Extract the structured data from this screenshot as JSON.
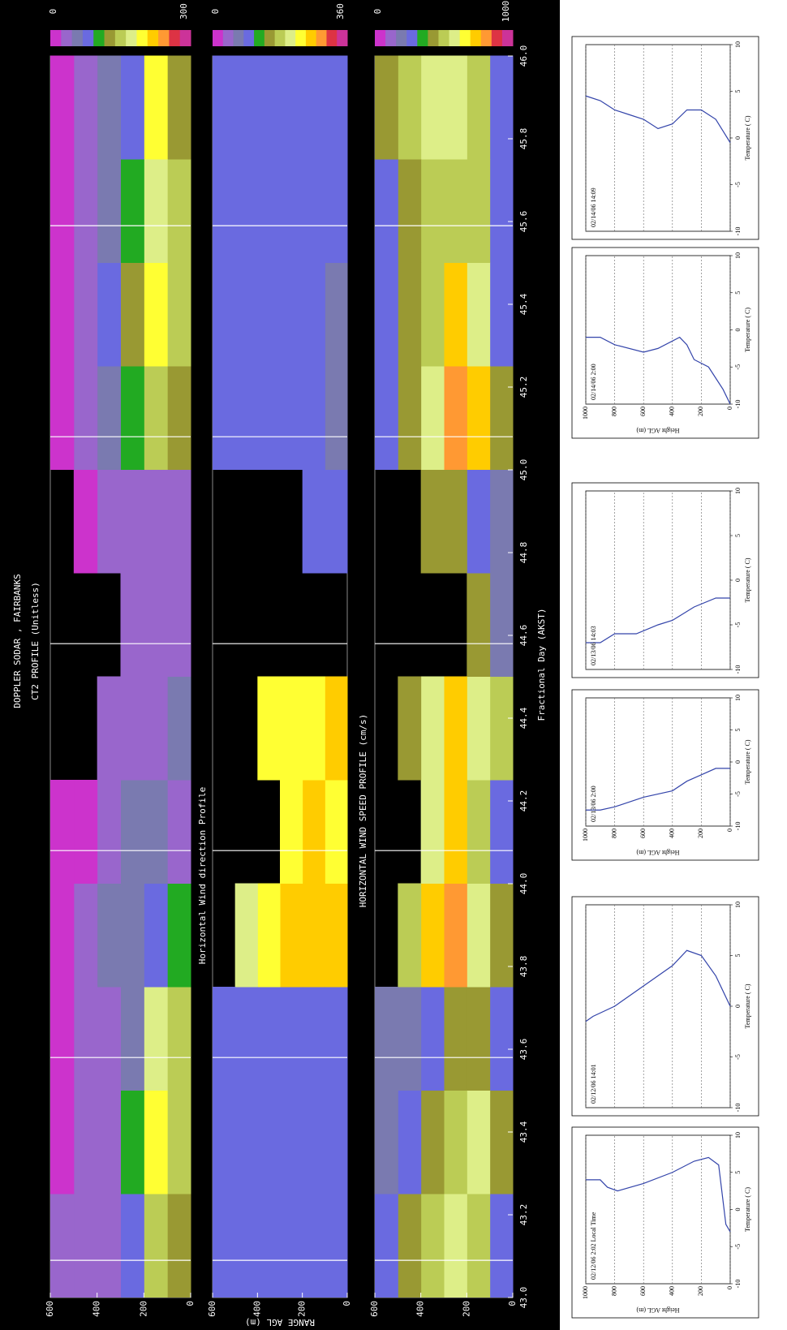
{
  "chart_data": [
    {
      "type": "heatmap",
      "title": "DOPPLER SODAR , FAIRBANKS",
      "subtitle": "CT2 PROFILE (Unitless)",
      "x_bins": [
        43,
        43.25,
        43.5,
        43.75,
        44,
        44.25,
        44.5,
        44.75,
        45,
        45.25,
        45.5,
        45.75,
        46
      ],
      "y_bins": [
        0,
        100,
        200,
        300,
        400,
        500,
        600
      ],
      "values": [
        [
          120,
          150,
          140,
          100,
          40,
          60,
          40,
          40,
          120,
          150,
          140,
          130
        ],
        [
          140,
          200,
          180,
          90,
          60,
          40,
          30,
          30,
          160,
          200,
          180,
          190
        ],
        [
          80,
          100,
          60,
          50,
          50,
          40,
          30,
          30,
          110,
          120,
          100,
          90
        ],
        [
          40,
          40,
          30,
          60,
          40,
          30,
          null,
          30,
          60,
          70,
          50,
          60
        ],
        [
          30,
          40,
          30,
          30,
          20,
          null,
          null,
          20,
          40,
          30,
          30,
          40
        ],
        [
          30,
          20,
          20,
          20,
          20,
          null,
          null,
          null,
          20,
          20,
          20,
          20
        ]
      ],
      "xlim": [
        43,
        46
      ],
      "ylim": [
        0,
        600
      ],
      "yticks": [
        0,
        200,
        400,
        600
      ],
      "vlim": [
        0,
        300
      ],
      "vlines": [
        43.09,
        43.58,
        44.08,
        44.58,
        45.08,
        45.59
      ],
      "colorscale": [
        "#cc33cc",
        "#9966cc",
        "#7a7ab0",
        "#6a6ae0",
        "#22aa22",
        "#999933",
        "#bbcc55",
        "#ddee88",
        "#ffff33",
        "#ffcc00",
        "#ff9933",
        "#dd3344",
        "#cc3399"
      ]
    },
    {
      "type": "heatmap",
      "title": "Horizontal Wind direction Profile",
      "ylabel": "RANGE AGL (m)",
      "x_bins": [
        43,
        43.25,
        43.5,
        43.75,
        44,
        44.25,
        44.5,
        44.75,
        45,
        45.25,
        45.5,
        45.75,
        46
      ],
      "y_bins": [
        0,
        100,
        200,
        300,
        400,
        500,
        600
      ],
      "values": [
        [
          90,
          90,
          90,
          250,
          240,
          250,
          null,
          90,
          80,
          80,
          90,
          90
        ],
        [
          90,
          90,
          90,
          260,
          250,
          240,
          null,
          100,
          90,
          90,
          90,
          90
        ],
        [
          90,
          90,
          90,
          250,
          240,
          230,
          null,
          null,
          90,
          90,
          90,
          90
        ],
        [
          90,
          90,
          90,
          240,
          null,
          240,
          null,
          null,
          100,
          90,
          90,
          90
        ],
        [
          90,
          90,
          90,
          220,
          null,
          null,
          null,
          null,
          100,
          100,
          90,
          90
        ],
        [
          100,
          90,
          90,
          null,
          null,
          null,
          null,
          null,
          100,
          90,
          100,
          90
        ]
      ],
      "xlim": [
        43,
        46
      ],
      "ylim": [
        0,
        600
      ],
      "yticks": [
        0,
        200,
        400,
        600
      ],
      "vlim": [
        0,
        360
      ],
      "vlines": [
        43.09,
        43.58,
        44.08,
        44.58,
        45.08,
        45.59
      ],
      "colorscale": [
        "#cc33cc",
        "#9966cc",
        "#7a7ab0",
        "#6a6ae0",
        "#22aa22",
        "#999933",
        "#bbcc55",
        "#ddee88",
        "#ffff33",
        "#ffcc00",
        "#ff9933",
        "#dd3344",
        "#cc3399"
      ]
    },
    {
      "type": "heatmap",
      "title": "HORIZONTAL WIND SPEED PROFILE (cm/s)",
      "xlabel": "Fractional Day (AKST)",
      "x_bins": [
        43,
        43.25,
        43.5,
        43.75,
        44,
        44.25,
        44.5,
        44.75,
        45,
        45.25,
        45.5,
        45.75,
        46
      ],
      "y_bins": [
        0,
        100,
        200,
        300,
        400,
        500,
        600
      ],
      "values": [
        [
          300,
          400,
          300,
          400,
          300,
          500,
          200,
          200,
          400,
          300,
          300,
          300
        ],
        [
          500,
          600,
          400,
          600,
          500,
          600,
          400,
          300,
          700,
          600,
          500,
          500
        ],
        [
          600,
          500,
          400,
          800,
          700,
          700,
          null,
          400,
          800,
          700,
          500,
          600
        ],
        [
          500,
          400,
          300,
          700,
          600,
          600,
          null,
          400,
          600,
          500,
          500,
          600
        ],
        [
          400,
          300,
          200,
          500,
          null,
          400,
          null,
          null,
          400,
          400,
          400,
          500
        ],
        [
          300,
          200,
          200,
          null,
          null,
          null,
          null,
          null,
          300,
          300,
          300,
          400
        ]
      ],
      "xlim": [
        43,
        46
      ],
      "ylim": [
        0,
        600
      ],
      "yticks": [
        0,
        200,
        400,
        600
      ],
      "vlim": [
        0,
        1000
      ],
      "xticks": [
        {
          "value": 43,
          "label": "43.0"
        },
        43.2,
        43.4,
        43.6,
        43.8,
        {
          "value": 44,
          "label": "44.0"
        },
        44.2,
        44.4,
        44.6,
        44.8,
        {
          "value": 45,
          "label": "45.0"
        },
        45.2,
        45.4,
        45.6,
        45.8,
        {
          "value": 46,
          "label": "46.0"
        }
      ],
      "vlines": [
        43.09,
        43.58,
        44.08,
        44.58,
        45.08,
        45.59
      ],
      "colorscale": [
        "#cc33cc",
        "#9966cc",
        "#7a7ab0",
        "#6a6ae0",
        "#22aa22",
        "#999933",
        "#bbcc55",
        "#ddee88",
        "#ffff33",
        "#ffcc00",
        "#ff9933",
        "#dd3344",
        "#cc3399"
      ]
    },
    {
      "type": "line",
      "title": "02/12/06 2:02 Local Time",
      "xlabel": "Temperature ( C)",
      "ylabel": "Height AGL (m)",
      "ytick_labels": true,
      "color": "#3344aa",
      "x": [
        -3,
        -2,
        6,
        7,
        6.5,
        5,
        3.5,
        2.5,
        3,
        4,
        4
      ],
      "values": [
        0,
        30,
        80,
        150,
        250,
        400,
        600,
        780,
        850,
        900,
        1000
      ],
      "xlim": [
        -10,
        10
      ],
      "ylim": [
        0,
        1000
      ],
      "xticks": [
        -10,
        -5,
        0,
        5,
        10
      ],
      "yticks": [
        0,
        200,
        400,
        600,
        800,
        1000
      ]
    },
    {
      "type": "line",
      "title": "02/12/06 14:01",
      "xlabel": "Temperature ( C)",
      "ytick_labels": false,
      "color": "#3344aa",
      "x": [
        0,
        3,
        5,
        5.5,
        4,
        2,
        0,
        -1,
        -1.5
      ],
      "values": [
        0,
        100,
        200,
        300,
        400,
        600,
        800,
        950,
        1000
      ],
      "xlim": [
        -10,
        10
      ],
      "ylim": [
        0,
        1000
      ],
      "xticks": [
        -10,
        -5,
        0,
        5,
        10
      ],
      "yticks": [
        0,
        200,
        400,
        600,
        800,
        1000
      ]
    },
    {
      "type": "line",
      "title": "02/13/06 2:00",
      "xlabel": "Temperature ( C)",
      "ylabel": "Height AGL (m)",
      "ytick_labels": true,
      "color": "#3344aa",
      "x": [
        -1,
        -1,
        -2,
        -3,
        -4.5,
        -5.5,
        -7,
        -7.5,
        -7.5
      ],
      "values": [
        0,
        100,
        200,
        300,
        400,
        600,
        800,
        900,
        1000
      ],
      "xlim": [
        -10,
        10
      ],
      "ylim": [
        0,
        1000
      ],
      "xticks": [
        -10,
        -5,
        0,
        5,
        10
      ],
      "yticks": [
        0,
        200,
        400,
        600,
        800,
        1000
      ]
    },
    {
      "type": "line",
      "title": "02/13/06 14:03",
      "xlabel": "Temperature ( C)",
      "ytick_labels": false,
      "color": "#3344aa",
      "x": [
        -2,
        -2,
        -3,
        -4.5,
        -5,
        -6,
        -6,
        -7,
        -7
      ],
      "values": [
        0,
        100,
        250,
        400,
        500,
        650,
        800,
        900,
        1000
      ],
      "xlim": [
        -10,
        10
      ],
      "ylim": [
        0,
        1000
      ],
      "xticks": [
        -10,
        -5,
        0,
        5,
        10
      ],
      "yticks": [
        0,
        200,
        400,
        600,
        800,
        1000
      ]
    },
    {
      "type": "line",
      "title": "02/14/06 2:00",
      "xlabel": "Temperature ( C)",
      "ylabel": "Height AGL (m)",
      "ytick_labels": true,
      "color": "#3344aa",
      "x": [
        -10,
        -8,
        -5,
        -4,
        -2,
        -1,
        -2.5,
        -3,
        -2,
        -1,
        -1
      ],
      "values": [
        0,
        50,
        150,
        250,
        300,
        350,
        500,
        600,
        800,
        900,
        1000
      ],
      "xlim": [
        -10,
        10
      ],
      "ylim": [
        0,
        1000
      ],
      "xticks": [
        -10,
        -5,
        0,
        5,
        10
      ],
      "yticks": [
        0,
        200,
        400,
        600,
        800,
        1000
      ]
    },
    {
      "type": "line",
      "title": "02/14/06 14:09",
      "xlabel": "Temperature ( C)",
      "ytick_labels": false,
      "color": "#3344aa",
      "x": [
        -0.5,
        2,
        3,
        3,
        1.5,
        1,
        2,
        2.5,
        3,
        4,
        4.5
      ],
      "values": [
        0,
        100,
        200,
        300,
        400,
        500,
        600,
        700,
        800,
        900,
        1000
      ],
      "xlim": [
        -10,
        10
      ],
      "ylim": [
        0,
        1000
      ],
      "xticks": [
        -10,
        -5,
        0,
        5,
        10
      ],
      "yticks": [
        0,
        200,
        400,
        600,
        800,
        1000
      ]
    }
  ]
}
